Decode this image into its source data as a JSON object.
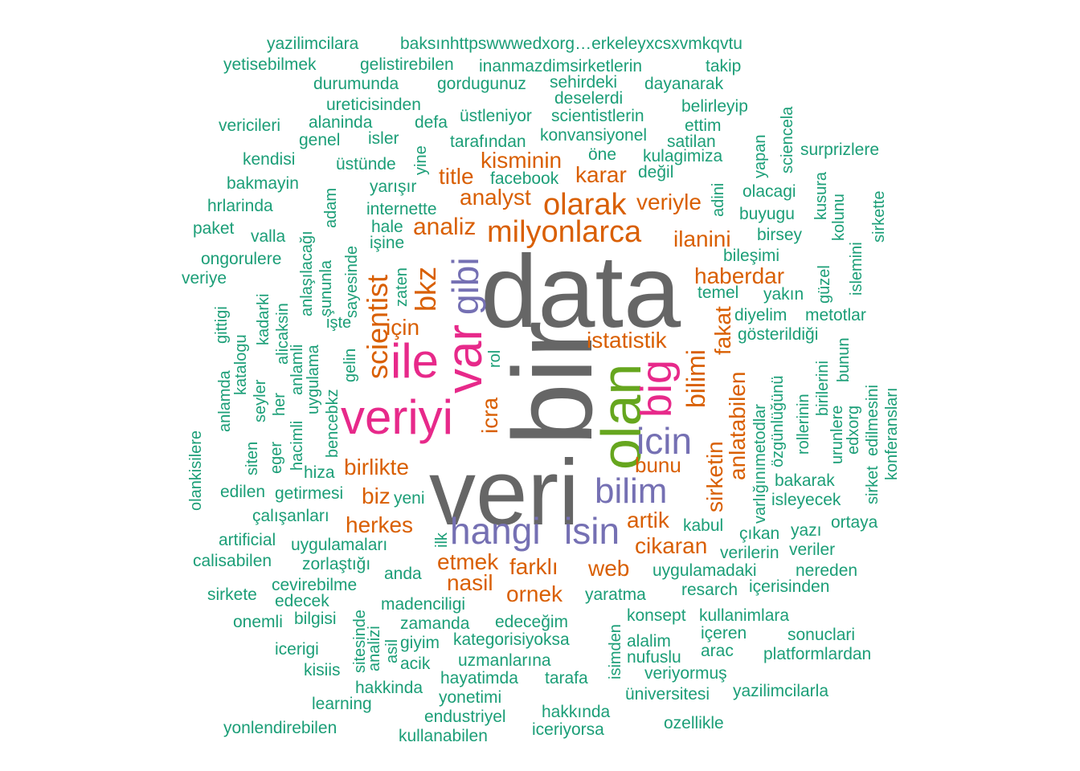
{
  "palette": {
    "gray": "#666666",
    "teal": "#1b9e77",
    "orange": "#d95f02",
    "purple": "#7570b3",
    "pink": "#e7298a",
    "green": "#66a61e"
  },
  "words": [
    "data",
    "bir",
    "veri",
    "olan",
    "veriyi",
    "var",
    "ile",
    "gibi",
    "big",
    "hangi",
    "isin",
    "icin",
    "bilim",
    "scientist",
    "bkz",
    "milyonlarca",
    "olarak",
    "analiz",
    "analyst",
    "kisminin",
    "karar",
    "title",
    "veriyle",
    "ilanini",
    "haberdar",
    "fakat",
    "bilimi",
    "istatistik",
    "anlatabilen",
    "sirketin",
    "bunu",
    "artik",
    "cikaran",
    "web",
    "farklı",
    "etmek",
    "nasil",
    "ornek",
    "icra",
    "herkes",
    "biz",
    "birlikte",
    "için",
    "yazilimcilara",
    "baksınhttpswwwedxorg…erkeleyxcsxvmkqvtu",
    "yetisebilmek",
    "gelistirebilen",
    "inanmazdimsirketlerin",
    "takip",
    "durumunda",
    "gordugunuz",
    "sehirdeki",
    "dayanarak",
    "ureticisinden",
    "deselerdi",
    "belirleyip",
    "vericileri",
    "alaninda",
    "defa",
    "üstleniyor",
    "scientistlerin",
    "ettim",
    "genel",
    "isler",
    "konvansiyonel",
    "satilan",
    "kendisi",
    "tarafından",
    "kulagimiza",
    "surprizlere",
    "üstünde",
    "öne",
    "facebook",
    "değil",
    "bakmayin",
    "yarışır",
    "olacagi",
    "hrlarinda",
    "internette",
    "buyugu",
    "paket",
    "hale",
    "birsey",
    "valla",
    "işine",
    "ongorulere",
    "bileşimi",
    "veriye",
    "temel",
    "yakın",
    "diyelim",
    "metotlar",
    "gösterildiği",
    "yazilimcilarla",
    "platformlardan",
    "sonuclari",
    "içeren",
    "kullanimlara",
    "konsept",
    "resarch",
    "içerisinden",
    "nereden",
    "uygulamadaki",
    "veriler",
    "verilerin",
    "çıkan",
    "yazı",
    "ortaya",
    "kabul",
    "isleyecek",
    "bakarak",
    "konferansları",
    "edilmesini",
    "sirket",
    "edxorg",
    "urunlere",
    "bunun",
    "birilerini",
    "rollerinin",
    "özgünlüğünü",
    "varlığınımetodlar",
    "olankisilere",
    "siten",
    "eger",
    "hiza",
    "getirmesi",
    "edilen",
    "çalışanları",
    "yeni",
    "artificial",
    "uygulamaları",
    "calisabilen",
    "zorlaştığı",
    "cevirebilme",
    "anda",
    "sirkete",
    "edecek",
    "madenciligi",
    "yaratma",
    "onemli",
    "bilgisi",
    "zamanda",
    "edeceğim",
    "icerigi",
    "giyim",
    "kategorisiyoksa",
    "alalim",
    "arac",
    "kisiis",
    "acik",
    "uzmanlarına",
    "nufuslu",
    "veriyormuş",
    "hakkinda",
    "hayatimda",
    "tarafa",
    "üniversitesi",
    "learning",
    "yonetimi",
    "hakkında",
    "endustriyel",
    "yonlendirebilen",
    "kullanabilen",
    "iceriyorsa",
    "ozellikle",
    "yine",
    "adam",
    "anlaşılacağı",
    "sayesinde",
    "zaten",
    "şununla",
    "kadarki",
    "alicaksin",
    "gittigi",
    "katalogu",
    "anlamda",
    "seyler",
    "her",
    "hacimli",
    "anlamli",
    "uygulama",
    "bencebkz",
    "gelin",
    "işte",
    "rol",
    "ilk",
    "asil",
    "analizi",
    "sitesinde",
    "isimden",
    "adini",
    "yapan",
    "sciencela",
    "kusura",
    "kolunu",
    "islemini",
    "sirkette",
    "güzel"
  ]
}
